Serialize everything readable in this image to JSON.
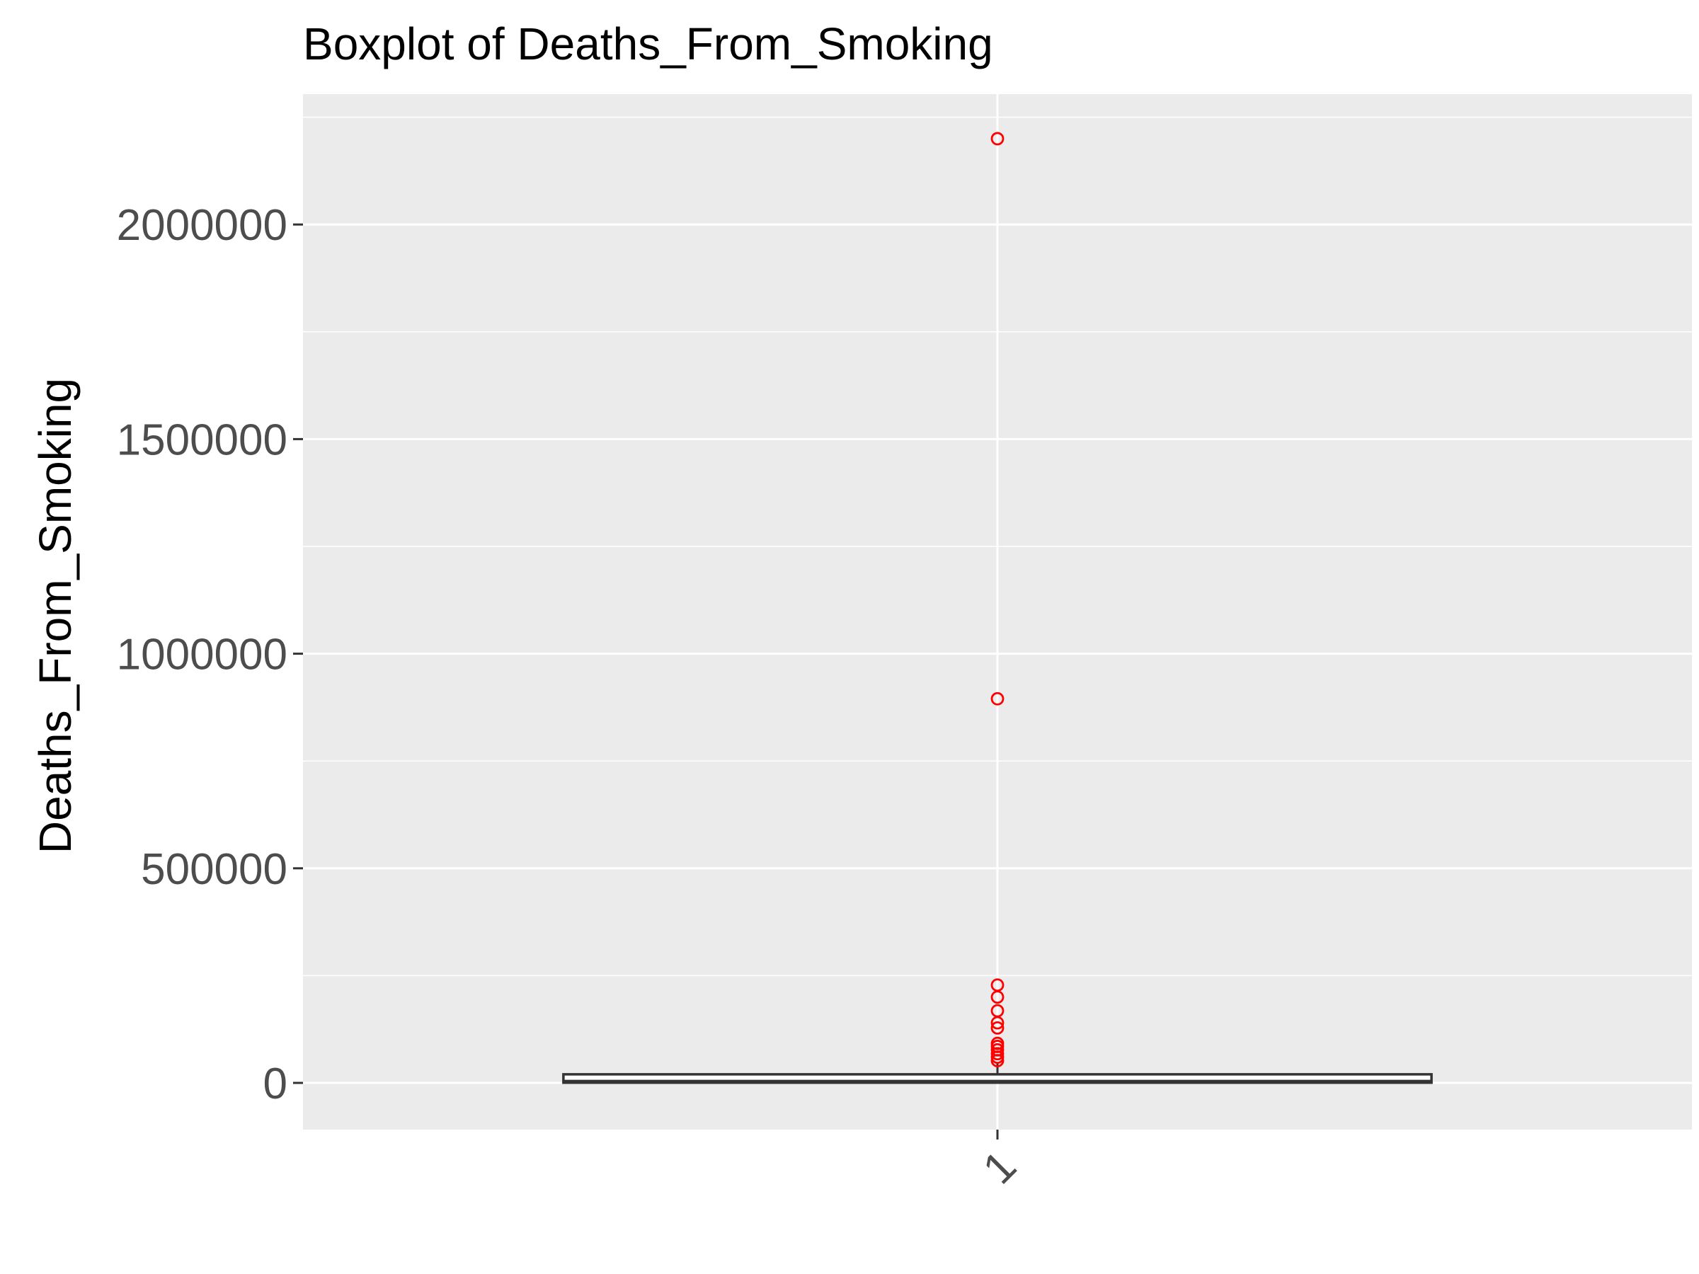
{
  "chart_data": {
    "type": "boxplot",
    "title": "Boxplot of Deaths_From_Smoking",
    "xlabel": "",
    "ylabel": "Deaths_From_Smoking",
    "categories": [
      "1"
    ],
    "y_ticks": [
      0,
      500000,
      1000000,
      1500000,
      2000000
    ],
    "y_tick_labels": [
      "0",
      "500000",
      "1000000",
      "1500000",
      "2000000"
    ],
    "ylim": [
      -110000,
      2310000
    ],
    "grid": true,
    "box": {
      "min": 0,
      "q1": 500,
      "median": 3000,
      "q3": 20000,
      "whisker_high": 48000
    },
    "outliers": [
      2200000,
      895000,
      228000,
      200000,
      168000,
      140000,
      128000,
      92000,
      85000,
      77000,
      68000,
      60000,
      52000
    ],
    "colors": {
      "panel": "#ebebeb",
      "grid": "#ffffff",
      "box": "#333333",
      "outlier": "#ff0000"
    }
  }
}
